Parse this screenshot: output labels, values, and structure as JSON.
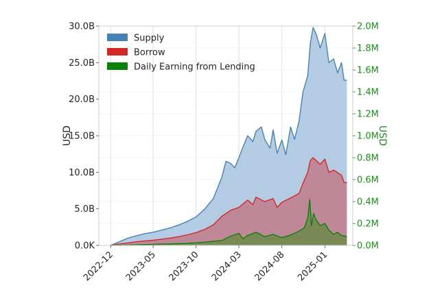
{
  "chart_data": {
    "type": "area",
    "title": "",
    "xlabel": "",
    "ylabel_left": "USD",
    "ylabel_right": "USD",
    "x_ticks": [
      "2022-12",
      "2023-05",
      "2023-10",
      "2024-03",
      "2024-08",
      "2025-01"
    ],
    "y_left_ticks": [
      "0.0K",
      "5.0B",
      "10.0B",
      "15.0B",
      "20.0B",
      "25.0B",
      "30.0B"
    ],
    "y_right_ticks": [
      "0.0M",
      "0.2M",
      "0.4M",
      "0.6M",
      "0.8M",
      "1.0M",
      "1.2M",
      "1.4M",
      "1.6M",
      "1.8M",
      "2.0M"
    ],
    "ylim_left": [
      0,
      30000000000
    ],
    "ylim_right": [
      0,
      2000000
    ],
    "xlim": [
      "2022-10-20",
      "2025-04-10"
    ],
    "grid": true,
    "legend_position": "top-left",
    "colors": {
      "supply": "#4682b4",
      "supply_fill": "#b4cce3",
      "borrow": "#d62728",
      "borrow_fill": "#c0808e",
      "earning": "#0a820a",
      "earning_fill": "#6e8a4a",
      "right_axis": "#1e8c1e"
    },
    "series": [
      {
        "name": "Supply",
        "axis": "left",
        "points": [
          [
            "2022-12-01",
            0
          ],
          [
            "2023-01-01",
            500000000.0
          ],
          [
            "2023-02-01",
            1000000000.0
          ],
          [
            "2023-03-01",
            1300000000.0
          ],
          [
            "2023-04-01",
            1600000000.0
          ],
          [
            "2023-05-01",
            1800000000.0
          ],
          [
            "2023-06-01",
            2100000000.0
          ],
          [
            "2023-07-01",
            2400000000.0
          ],
          [
            "2023-08-01",
            2800000000.0
          ],
          [
            "2023-09-01",
            3300000000.0
          ],
          [
            "2023-10-01",
            3900000000.0
          ],
          [
            "2023-11-01",
            5000000000.0
          ],
          [
            "2023-12-01",
            6400000000.0
          ],
          [
            "2024-01-01",
            9400000000.0
          ],
          [
            "2024-01-15",
            11500000000.0
          ],
          [
            "2024-02-01",
            11200000000.0
          ],
          [
            "2024-02-15",
            10600000000.0
          ],
          [
            "2024-03-01",
            12000000000.0
          ],
          [
            "2024-03-15",
            13400000000.0
          ],
          [
            "2024-04-01",
            15000000000.0
          ],
          [
            "2024-04-20",
            14200000000.0
          ],
          [
            "2024-05-01",
            15600000000.0
          ],
          [
            "2024-05-20",
            16200000000.0
          ],
          [
            "2024-06-01",
            14500000000.0
          ],
          [
            "2024-06-20",
            13300000000.0
          ],
          [
            "2024-07-01",
            15800000000.0
          ],
          [
            "2024-07-15",
            12600000000.0
          ],
          [
            "2024-08-01",
            14400000000.0
          ],
          [
            "2024-08-15",
            12400000000.0
          ],
          [
            "2024-09-01",
            16200000000.0
          ],
          [
            "2024-09-15",
            14500000000.0
          ],
          [
            "2024-10-01",
            17000000000.0
          ],
          [
            "2024-10-15",
            21000000000.0
          ],
          [
            "2024-11-01",
            23200000000.0
          ],
          [
            "2024-11-10",
            27600000000.0
          ],
          [
            "2024-11-20",
            29800000000.0
          ],
          [
            "2024-12-01",
            28900000000.0
          ],
          [
            "2024-12-15",
            27000000000.0
          ],
          [
            "2025-01-01",
            29000000000.0
          ],
          [
            "2025-01-15",
            25000000000.0
          ],
          [
            "2025-02-01",
            25500000000.0
          ],
          [
            "2025-02-15",
            23600000000.0
          ],
          [
            "2025-03-01",
            25000000000.0
          ],
          [
            "2025-03-10",
            22600000000.0
          ],
          [
            "2025-03-20",
            22600000000.0
          ]
        ]
      },
      {
        "name": "Borrow",
        "axis": "left",
        "points": [
          [
            "2022-12-01",
            0
          ],
          [
            "2023-01-01",
            200000000.0
          ],
          [
            "2023-02-01",
            350000000.0
          ],
          [
            "2023-03-01",
            500000000.0
          ],
          [
            "2023-04-01",
            600000000.0
          ],
          [
            "2023-05-01",
            700000000.0
          ],
          [
            "2023-06-01",
            850000000.0
          ],
          [
            "2023-07-01",
            1000000000.0
          ],
          [
            "2023-08-01",
            1200000000.0
          ],
          [
            "2023-09-01",
            1450000000.0
          ],
          [
            "2023-10-01",
            1750000000.0
          ],
          [
            "2023-11-01",
            2200000000.0
          ],
          [
            "2023-12-01",
            2800000000.0
          ],
          [
            "2024-01-01",
            4000000000.0
          ],
          [
            "2024-02-01",
            4800000000.0
          ],
          [
            "2024-03-01",
            5200000000.0
          ],
          [
            "2024-04-01",
            6200000000.0
          ],
          [
            "2024-04-20",
            5600000000.0
          ],
          [
            "2024-05-01",
            6600000000.0
          ],
          [
            "2024-06-01",
            6000000000.0
          ],
          [
            "2024-07-01",
            6400000000.0
          ],
          [
            "2024-07-15",
            5200000000.0
          ],
          [
            "2024-08-01",
            5900000000.0
          ],
          [
            "2024-09-01",
            6500000000.0
          ],
          [
            "2024-10-01",
            7100000000.0
          ],
          [
            "2024-10-15",
            8500000000.0
          ],
          [
            "2024-11-01",
            10000000000.0
          ],
          [
            "2024-11-10",
            11600000000.0
          ],
          [
            "2024-11-20",
            12000000000.0
          ],
          [
            "2024-12-15",
            11100000000.0
          ],
          [
            "2025-01-01",
            11800000000.0
          ],
          [
            "2025-01-15",
            10000000000.0
          ],
          [
            "2025-02-01",
            10300000000.0
          ],
          [
            "2025-03-01",
            9600000000.0
          ],
          [
            "2025-03-10",
            8600000000.0
          ],
          [
            "2025-03-20",
            8600000000.0
          ]
        ]
      },
      {
        "name": "Daily Earning from Lending",
        "axis": "right",
        "points": [
          [
            "2022-12-01",
            0
          ],
          [
            "2023-03-01",
            5000
          ],
          [
            "2023-06-01",
            12000
          ],
          [
            "2023-09-01",
            18000
          ],
          [
            "2023-11-01",
            30000
          ],
          [
            "2024-01-01",
            45000
          ],
          [
            "2024-02-01",
            85000
          ],
          [
            "2024-03-01",
            110000
          ],
          [
            "2024-03-15",
            60000
          ],
          [
            "2024-04-01",
            90000
          ],
          [
            "2024-05-01",
            120000
          ],
          [
            "2024-06-01",
            80000
          ],
          [
            "2024-07-01",
            100000
          ],
          [
            "2024-08-01",
            70000
          ],
          [
            "2024-09-01",
            95000
          ],
          [
            "2024-10-01",
            130000
          ],
          [
            "2024-10-20",
            160000
          ],
          [
            "2024-11-01",
            250000
          ],
          [
            "2024-11-08",
            420000
          ],
          [
            "2024-11-14",
            180000
          ],
          [
            "2024-11-22",
            290000
          ],
          [
            "2024-12-01",
            230000
          ],
          [
            "2024-12-15",
            180000
          ],
          [
            "2025-01-01",
            200000
          ],
          [
            "2025-01-15",
            140000
          ],
          [
            "2025-02-01",
            100000
          ],
          [
            "2025-02-15",
            120000
          ],
          [
            "2025-03-01",
            90000
          ],
          [
            "2025-03-20",
            80000
          ]
        ]
      }
    ]
  }
}
